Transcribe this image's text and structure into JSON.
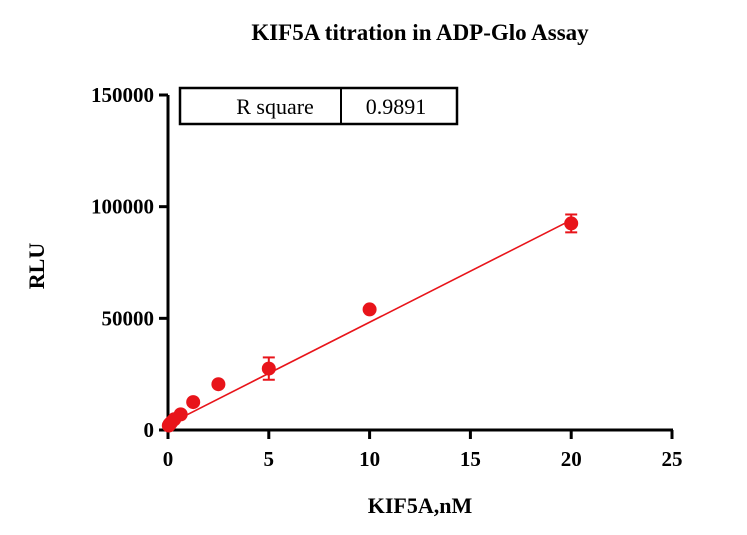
{
  "chart_data": {
    "type": "scatter",
    "title": "KIF5A titration in ADP-Glo Assay",
    "xlabel": "KIF5A,nM",
    "ylabel": "RLU",
    "xlim": [
      0,
      25
    ],
    "ylim": [
      0,
      150000
    ],
    "xticks": [
      "0",
      "5",
      "10",
      "15",
      "20",
      "25"
    ],
    "yticks": [
      "0",
      "50000",
      "100000",
      "150000"
    ],
    "grid": false,
    "series": [
      {
        "color": "#e8141a",
        "points": [
          {
            "x": 0.04,
            "y": 2000,
            "err": 500
          },
          {
            "x": 0.08,
            "y": 2600,
            "err": 500
          },
          {
            "x": 0.16,
            "y": 3400,
            "err": 500
          },
          {
            "x": 0.31,
            "y": 4800,
            "err": 600
          },
          {
            "x": 0.63,
            "y": 7000,
            "err": 700
          },
          {
            "x": 1.25,
            "y": 12500,
            "err": 800
          },
          {
            "x": 2.5,
            "y": 20500,
            "err": 800
          },
          {
            "x": 5,
            "y": 27500,
            "err": 5000
          },
          {
            "x": 10,
            "y": 54000,
            "err": 1000
          },
          {
            "x": 20,
            "y": 92500,
            "err": 4000
          }
        ],
        "fit": {
          "type": "linear",
          "x_range": [
            0,
            20
          ],
          "y_start": 2500,
          "y_end": 94000
        }
      }
    ],
    "legend": null,
    "table": {
      "label": "R square",
      "value": "0.9891"
    }
  }
}
